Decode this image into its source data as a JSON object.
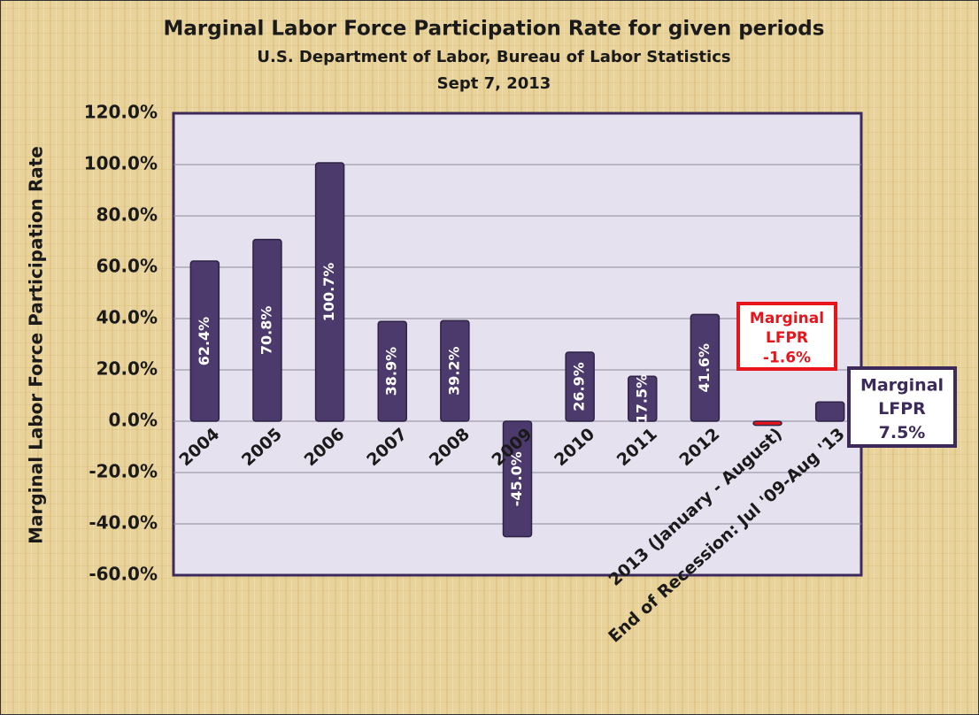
{
  "chart_data": {
    "type": "bar",
    "title": "Marginal Labor Force Participation Rate for given periods",
    "subtitle": "U.S. Department  of Labor, Bureau of Labor Statistics",
    "date": "Sept 7, 2013",
    "y_label": "Marginal Labor Force Participation Rate",
    "categories": [
      "2004",
      "2005",
      "2006",
      "2007",
      "2008",
      "2009",
      "2010",
      "2011",
      "2012",
      "2013 (January - August)",
      "End of Recession: Jul '09-Aug '13"
    ],
    "values": [
      62.4,
      70.8,
      100.7,
      38.9,
      39.2,
      -45.0,
      26.9,
      17.5,
      41.6,
      -1.6,
      7.5
    ],
    "value_labels": [
      "62.4%",
      "70.8%",
      "100.7%",
      "38.9%",
      "39.2%",
      "-45.0%",
      "26.9%",
      "17.5%",
      "41.6%",
      "-1.6%",
      "7.5%"
    ],
    "colors": [
      "#4b3a6b",
      "#4b3a6b",
      "#4b3a6b",
      "#4b3a6b",
      "#4b3a6b",
      "#4b3a6b",
      "#4b3a6b",
      "#4b3a6b",
      "#4b3a6b",
      "#e8141c",
      "#4b3a6b"
    ],
    "callout_lines": [
      "Marginal",
      "LFPR"
    ],
    "ylim": [
      -60,
      120
    ],
    "yticks": [
      {
        "value": -60,
        "label": "-60.0%"
      },
      {
        "value": -40,
        "label": "-40.0%"
      },
      {
        "value": -20,
        "label": "-20.0%"
      },
      {
        "value": 0,
        "label": "0.0%"
      },
      {
        "value": 20,
        "label": "20.0%"
      },
      {
        "value": 40,
        "label": "40.0%"
      },
      {
        "value": 60,
        "label": "60.0%"
      },
      {
        "value": 80,
        "label": "80.0%"
      },
      {
        "value": 100,
        "label": "100.0%"
      },
      {
        "value": 120,
        "label": "120.0%"
      }
    ],
    "grid": true
  }
}
